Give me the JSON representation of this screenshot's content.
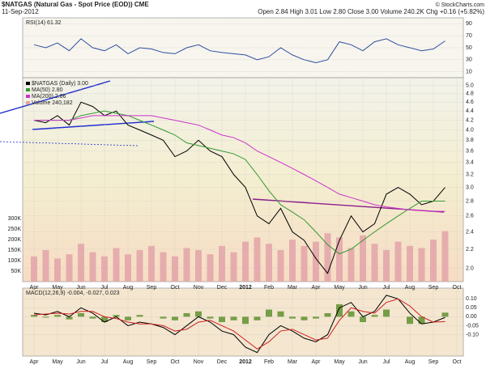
{
  "header": {
    "title": "$NATGAS (Natural Gas - Spot Price (EOD)) CME",
    "date": "11-Sep-2012",
    "quote": "Open 2.84 High 3.01 Low 2.80 Close 3.00 Volume 240.2K Chg +0.16 (+5.82%)",
    "credit": "© StockCharts.com"
  },
  "chart_data": [
    {
      "type": "line",
      "title": "RSI(14) 61.32",
      "ylim": [
        0,
        100
      ],
      "yticks": [
        10,
        30,
        50,
        70,
        90
      ],
      "grid": true,
      "series": [
        {
          "name": "RSI(14)",
          "color": "#2f4f9f",
          "values": [
            55,
            50,
            58,
            45,
            65,
            50,
            45,
            55,
            40,
            50,
            48,
            42,
            40,
            50,
            55,
            45,
            42,
            40,
            38,
            30,
            35,
            50,
            38,
            30,
            25,
            30,
            60,
            55,
            45,
            60,
            65,
            55,
            50,
            45,
            48,
            61.32,
            null
          ]
        }
      ]
    },
    {
      "type": "line",
      "log": true,
      "ylim": [
        1.87,
        5.2
      ],
      "yticks": [
        {
          "value": 2.0,
          "label": "2.0"
        },
        {
          "value": 2.2,
          "label": "2.2"
        },
        {
          "value": 2.4,
          "label": "2.4"
        },
        {
          "value": 2.6,
          "label": "2.6"
        },
        {
          "value": 2.8,
          "label": "2.8"
        },
        {
          "value": 3.0,
          "label": "3.0"
        },
        {
          "value": 3.2,
          "label": "3.2"
        },
        {
          "value": 3.4,
          "label": "3.4"
        },
        {
          "value": 3.6,
          "label": "3.6"
        },
        {
          "value": 3.8,
          "label": "3.8"
        },
        {
          "value": 4.0,
          "label": "4.0"
        },
        {
          "value": 4.2,
          "label": "4.2"
        },
        {
          "value": 4.4,
          "label": "4.4"
        },
        {
          "value": 4.6,
          "label": "4.6"
        },
        {
          "value": 4.8,
          "label": "4.8"
        },
        {
          "value": 5.0,
          "label": "5.0"
        }
      ],
      "grid": true,
      "categories": [
        "Apr",
        null,
        "May",
        null,
        "Jun",
        null,
        "Jul",
        null,
        "Aug",
        null,
        "Sep",
        null,
        "Oct",
        null,
        "Nov",
        null,
        "Dec",
        null,
        "2012",
        null,
        "Feb",
        null,
        "Mar",
        null,
        "Apr",
        null,
        "May",
        null,
        "Jun",
        null,
        "Jul",
        null,
        "Aug",
        null,
        "Sep",
        null,
        "Oct"
      ],
      "series": [
        {
          "name": "$NATGAS (Daily) 3.00",
          "color": "#000000",
          "values": [
            4.2,
            4.15,
            4.3,
            4.1,
            4.6,
            4.5,
            4.3,
            4.4,
            4.1,
            4.0,
            3.9,
            3.8,
            3.5,
            3.6,
            3.8,
            3.6,
            3.5,
            3.2,
            3.0,
            2.6,
            2.5,
            2.7,
            2.4,
            2.3,
            2.1,
            1.95,
            2.3,
            2.6,
            2.4,
            2.5,
            2.9,
            3.0,
            2.9,
            2.75,
            2.8,
            3.0,
            null
          ]
        },
        {
          "name": "MA(50) 2.80",
          "color": "#339933",
          "values": [
            4.2,
            4.2,
            4.2,
            4.2,
            4.3,
            4.35,
            4.4,
            4.35,
            4.3,
            4.2,
            4.1,
            4.0,
            3.9,
            3.75,
            3.7,
            3.65,
            3.6,
            3.55,
            3.45,
            3.2,
            2.95,
            2.75,
            2.65,
            2.55,
            2.4,
            2.25,
            2.15,
            2.2,
            2.3,
            2.4,
            2.5,
            2.6,
            2.7,
            2.8,
            2.8,
            2.8,
            null
          ]
        },
        {
          "name": "MA(200) 2.66",
          "color": "#cc33cc",
          "values": [
            4.2,
            4.2,
            4.2,
            4.2,
            4.25,
            4.3,
            4.3,
            4.3,
            4.3,
            4.3,
            4.3,
            4.25,
            4.2,
            4.15,
            4.1,
            4.0,
            3.9,
            3.85,
            3.75,
            3.6,
            3.5,
            3.4,
            3.3,
            3.2,
            3.1,
            3.0,
            2.9,
            2.85,
            2.8,
            2.75,
            2.72,
            2.7,
            2.68,
            2.67,
            2.66,
            2.66,
            null
          ]
        },
        {
          "name": "Volume 240,182",
          "color": "#e3a3a8",
          "axis": "y2",
          "type": "bar",
          "values": [
            120000,
            150000,
            110000,
            130000,
            180000,
            140000,
            120000,
            160000,
            130000,
            150000,
            170000,
            140000,
            120000,
            160000,
            150000,
            130000,
            170000,
            140000,
            190000,
            210000,
            180000,
            150000,
            200000,
            170000,
            190000,
            230000,
            210000,
            160000,
            220000,
            180000,
            150000,
            190000,
            170000,
            160000,
            200000,
            240182,
            null
          ]
        }
      ],
      "y2lim": [
        0,
        970000
      ],
      "y2ticks": [
        {
          "value": 50000,
          "label": "50K"
        },
        {
          "value": 100000,
          "label": "100K"
        },
        {
          "value": 150000,
          "label": "150K"
        },
        {
          "value": 200000,
          "label": "200K"
        },
        {
          "value": 250000,
          "label": "250K"
        },
        {
          "value": 300000,
          "label": "300K"
        }
      ]
    },
    {
      "type": "line",
      "title": "MACD(12,26,9) -0.004, -0.027, 0.023",
      "ylim": [
        -0.22,
        0.16
      ],
      "yticks": [
        {
          "value": -0.1,
          "label": "-0.10"
        },
        {
          "value": -0.05,
          "label": "-0.05"
        },
        {
          "value": 0,
          "label": "0.00"
        },
        {
          "value": 0.05,
          "label": "0.05"
        },
        {
          "value": 0.1,
          "label": "0.10"
        }
      ],
      "grid": true,
      "categories": [
        "Apr",
        null,
        "May",
        null,
        "Jun",
        null,
        "Jul",
        null,
        "Aug",
        null,
        "Sep",
        null,
        "Oct",
        null,
        "Nov",
        null,
        "Dec",
        null,
        "2012",
        null,
        "Feb",
        null,
        "Mar",
        null,
        "Apr",
        null,
        "May",
        null,
        "Jun",
        null,
        "Jul",
        null,
        "Aug",
        null,
        "Sep",
        null,
        "Oct"
      ],
      "series": [
        {
          "name": "MACD",
          "color": "#000000",
          "values": [
            0.02,
            0.01,
            0.03,
            0.0,
            0.05,
            0.02,
            -0.03,
            0.0,
            -0.05,
            -0.03,
            -0.04,
            -0.06,
            -0.1,
            -0.05,
            0.0,
            -0.03,
            -0.08,
            -0.1,
            -0.17,
            -0.2,
            -0.1,
            -0.05,
            -0.08,
            -0.12,
            -0.14,
            -0.1,
            0.05,
            0.08,
            0.0,
            0.03,
            0.12,
            0.1,
            0.02,
            -0.04,
            -0.03,
            -0.004,
            null
          ]
        },
        {
          "name": "Signal",
          "color": "#d02020",
          "values": [
            0.01,
            0.015,
            0.02,
            0.015,
            0.03,
            0.03,
            0.0,
            -0.01,
            -0.03,
            -0.04,
            -0.04,
            -0.05,
            -0.08,
            -0.07,
            -0.03,
            -0.02,
            -0.05,
            -0.08,
            -0.13,
            -0.18,
            -0.14,
            -0.08,
            -0.07,
            -0.1,
            -0.13,
            -0.12,
            -0.02,
            0.05,
            0.03,
            0.02,
            0.08,
            0.1,
            0.06,
            0.0,
            -0.03,
            -0.027,
            null
          ]
        },
        {
          "name": "Histogram",
          "color": "#5f8f2f",
          "type": "bar",
          "values": [
            0.01,
            -0.005,
            0.01,
            -0.015,
            0.02,
            -0.01,
            -0.03,
            0.01,
            -0.02,
            0.01,
            0.0,
            -0.01,
            -0.02,
            0.02,
            0.03,
            -0.01,
            -0.03,
            -0.02,
            -0.04,
            -0.02,
            0.04,
            0.03,
            -0.01,
            -0.02,
            -0.01,
            0.02,
            0.07,
            0.03,
            -0.03,
            0.01,
            0.04,
            0.0,
            -0.04,
            -0.04,
            0.0,
            0.023,
            null
          ]
        }
      ]
    }
  ]
}
